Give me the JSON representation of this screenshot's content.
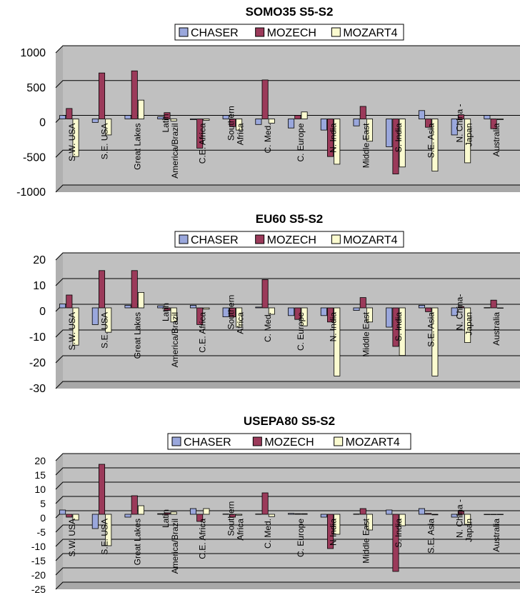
{
  "legend_labels": [
    "CHASER",
    "MOZECH",
    "MOZART4"
  ],
  "colors": {
    "CHASER": "#9aa7dc",
    "MOZECH": "#9b3a5a",
    "MOZART4": "#fbfbd0",
    "plot_bg": "#c0c0c0",
    "grid": "#000000"
  },
  "chart_data": [
    {
      "type": "bar",
      "title": "SOMO35 S5-S2",
      "ylim": [
        -1000,
        1000
      ],
      "yticks": [
        "1000",
        "500",
        "0",
        "-500",
        "-1000"
      ],
      "categories": [
        "S.W. USA",
        "S.E. USA",
        "Great Lakes",
        "Latin America/Brazil",
        "C.E. Africa",
        "Southern Africa",
        "C. Med.",
        "C. Europe",
        "N. India",
        "Middle East",
        "S. India",
        "S.E. Asia",
        "N. China - Japan",
        "Australia"
      ],
      "series": [
        {
          "name": "CHASER",
          "values": [
            50,
            -50,
            50,
            30,
            -10,
            50,
            -80,
            -130,
            -160,
            -100,
            -400,
            120,
            -230,
            50
          ]
        },
        {
          "name": "MOZECH",
          "values": [
            150,
            660,
            690,
            90,
            -420,
            -110,
            560,
            50,
            -540,
            180,
            -790,
            -120,
            60,
            -140
          ]
        },
        {
          "name": "MOZART4",
          "values": [
            -540,
            -230,
            270,
            -30,
            -20,
            -160,
            -60,
            100,
            -650,
            -320,
            -690,
            -750,
            -630,
            -10
          ]
        }
      ],
      "grid": true,
      "legend": "top"
    },
    {
      "type": "bar",
      "title": "EU60 S5-S2",
      "ylim": [
        -30,
        20
      ],
      "yticks": [
        "20",
        "10",
        "0",
        "-10",
        "-20",
        "-30"
      ],
      "categories": [
        "S.W. USA",
        "S.E. USA",
        "Great Lakes",
        "Latin America/Brazil",
        "C.E. Africa",
        "Southern Africa",
        "C. Med.",
        "C. Europe",
        "N. India",
        "Middle East",
        "S. India",
        "S.E. Asia",
        "N. China- Japan",
        "Australia"
      ],
      "series": [
        {
          "name": "CHASER",
          "values": [
            1.5,
            -6.5,
            1.0,
            0.8,
            1.0,
            -3.5,
            0.3,
            -3.0,
            -3.0,
            -1.0,
            -7.5,
            1.0,
            -3.0,
            0.1
          ]
        },
        {
          "name": "MOZECH",
          "values": [
            5.0,
            14.5,
            14.5,
            -1.0,
            -6.5,
            -3.5,
            11.0,
            -4.5,
            -5.5,
            4.0,
            -15.0,
            -1.5,
            0.5,
            3.0
          ]
        },
        {
          "name": "MOZART4",
          "values": [
            -14.5,
            -9.5,
            6.0,
            -5.5,
            -0.5,
            -7.5,
            -2.5,
            -7.0,
            -26.5,
            -5.5,
            -18.5,
            -26.5,
            -13.5,
            0
          ]
        }
      ],
      "grid": true,
      "legend": "top"
    },
    {
      "type": "bar",
      "title": "USEPA80 S5-S2",
      "ylim": [
        -25,
        20
      ],
      "yticks": [
        "20",
        "15",
        "10",
        "5",
        "0",
        "-5",
        "-10",
        "-15",
        "-20",
        "-25"
      ],
      "categories": [
        "S.W. USA",
        "S.E. USA",
        "Great Lakes",
        "Latin America/Brazil",
        "C.E. Africa",
        "Southern Africa",
        "C. Med.",
        "C. Europe",
        "N India",
        "Middle East",
        "S. India",
        "S.E. Asia",
        "N. China - Japan",
        "Australia"
      ],
      "series": [
        {
          "name": "CHASER",
          "values": [
            1.5,
            -5.0,
            -1.0,
            0.2,
            2.0,
            0.1,
            0.1,
            0.3,
            -1.0,
            0.1,
            1.5,
            2.0,
            -1.0,
            0
          ]
        },
        {
          "name": "MOZECH",
          "values": [
            -1.0,
            17.5,
            6.5,
            0.5,
            -2.5,
            -1.0,
            7.5,
            0.2,
            -12.0,
            2.0,
            -20.0,
            0.3,
            1.0,
            0
          ]
        },
        {
          "name": "MOZART4",
          "values": [
            -2.0,
            -11.0,
            3.0,
            0.8,
            2.0,
            -0.3,
            -0.8,
            0.2,
            -7.0,
            -5.5,
            -4.0,
            -0.2,
            -3.5,
            0
          ]
        }
      ],
      "grid": true,
      "legend": "top"
    }
  ]
}
